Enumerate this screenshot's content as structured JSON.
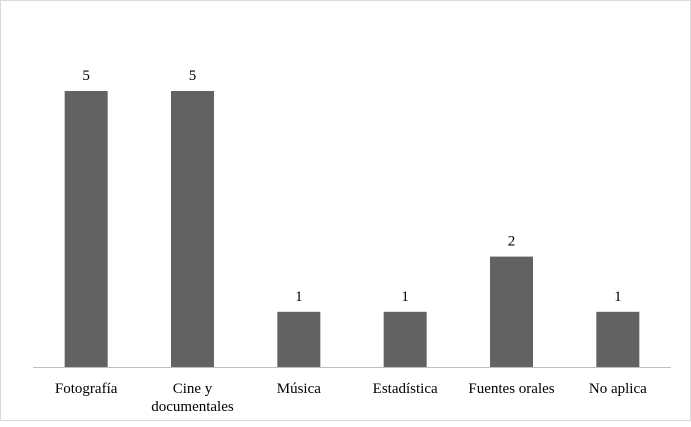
{
  "chart_data": {
    "type": "bar",
    "categories": [
      [
        "Fotografía"
      ],
      [
        "Cine y",
        "documentales"
      ],
      [
        "Música"
      ],
      [
        "Estadística"
      ],
      [
        "Fuentes orales"
      ],
      [
        "No aplica"
      ]
    ],
    "values": [
      5,
      5,
      1,
      1,
      2,
      1
    ],
    "value_labels": [
      "5",
      "5",
      "1",
      "1",
      "2",
      "1"
    ],
    "title": "",
    "xlabel": "",
    "ylabel": "",
    "ylim": [
      0,
      5
    ],
    "grid": false,
    "legend": "none",
    "bar_color": "#626262",
    "axis_color": "#bfbfbf"
  }
}
